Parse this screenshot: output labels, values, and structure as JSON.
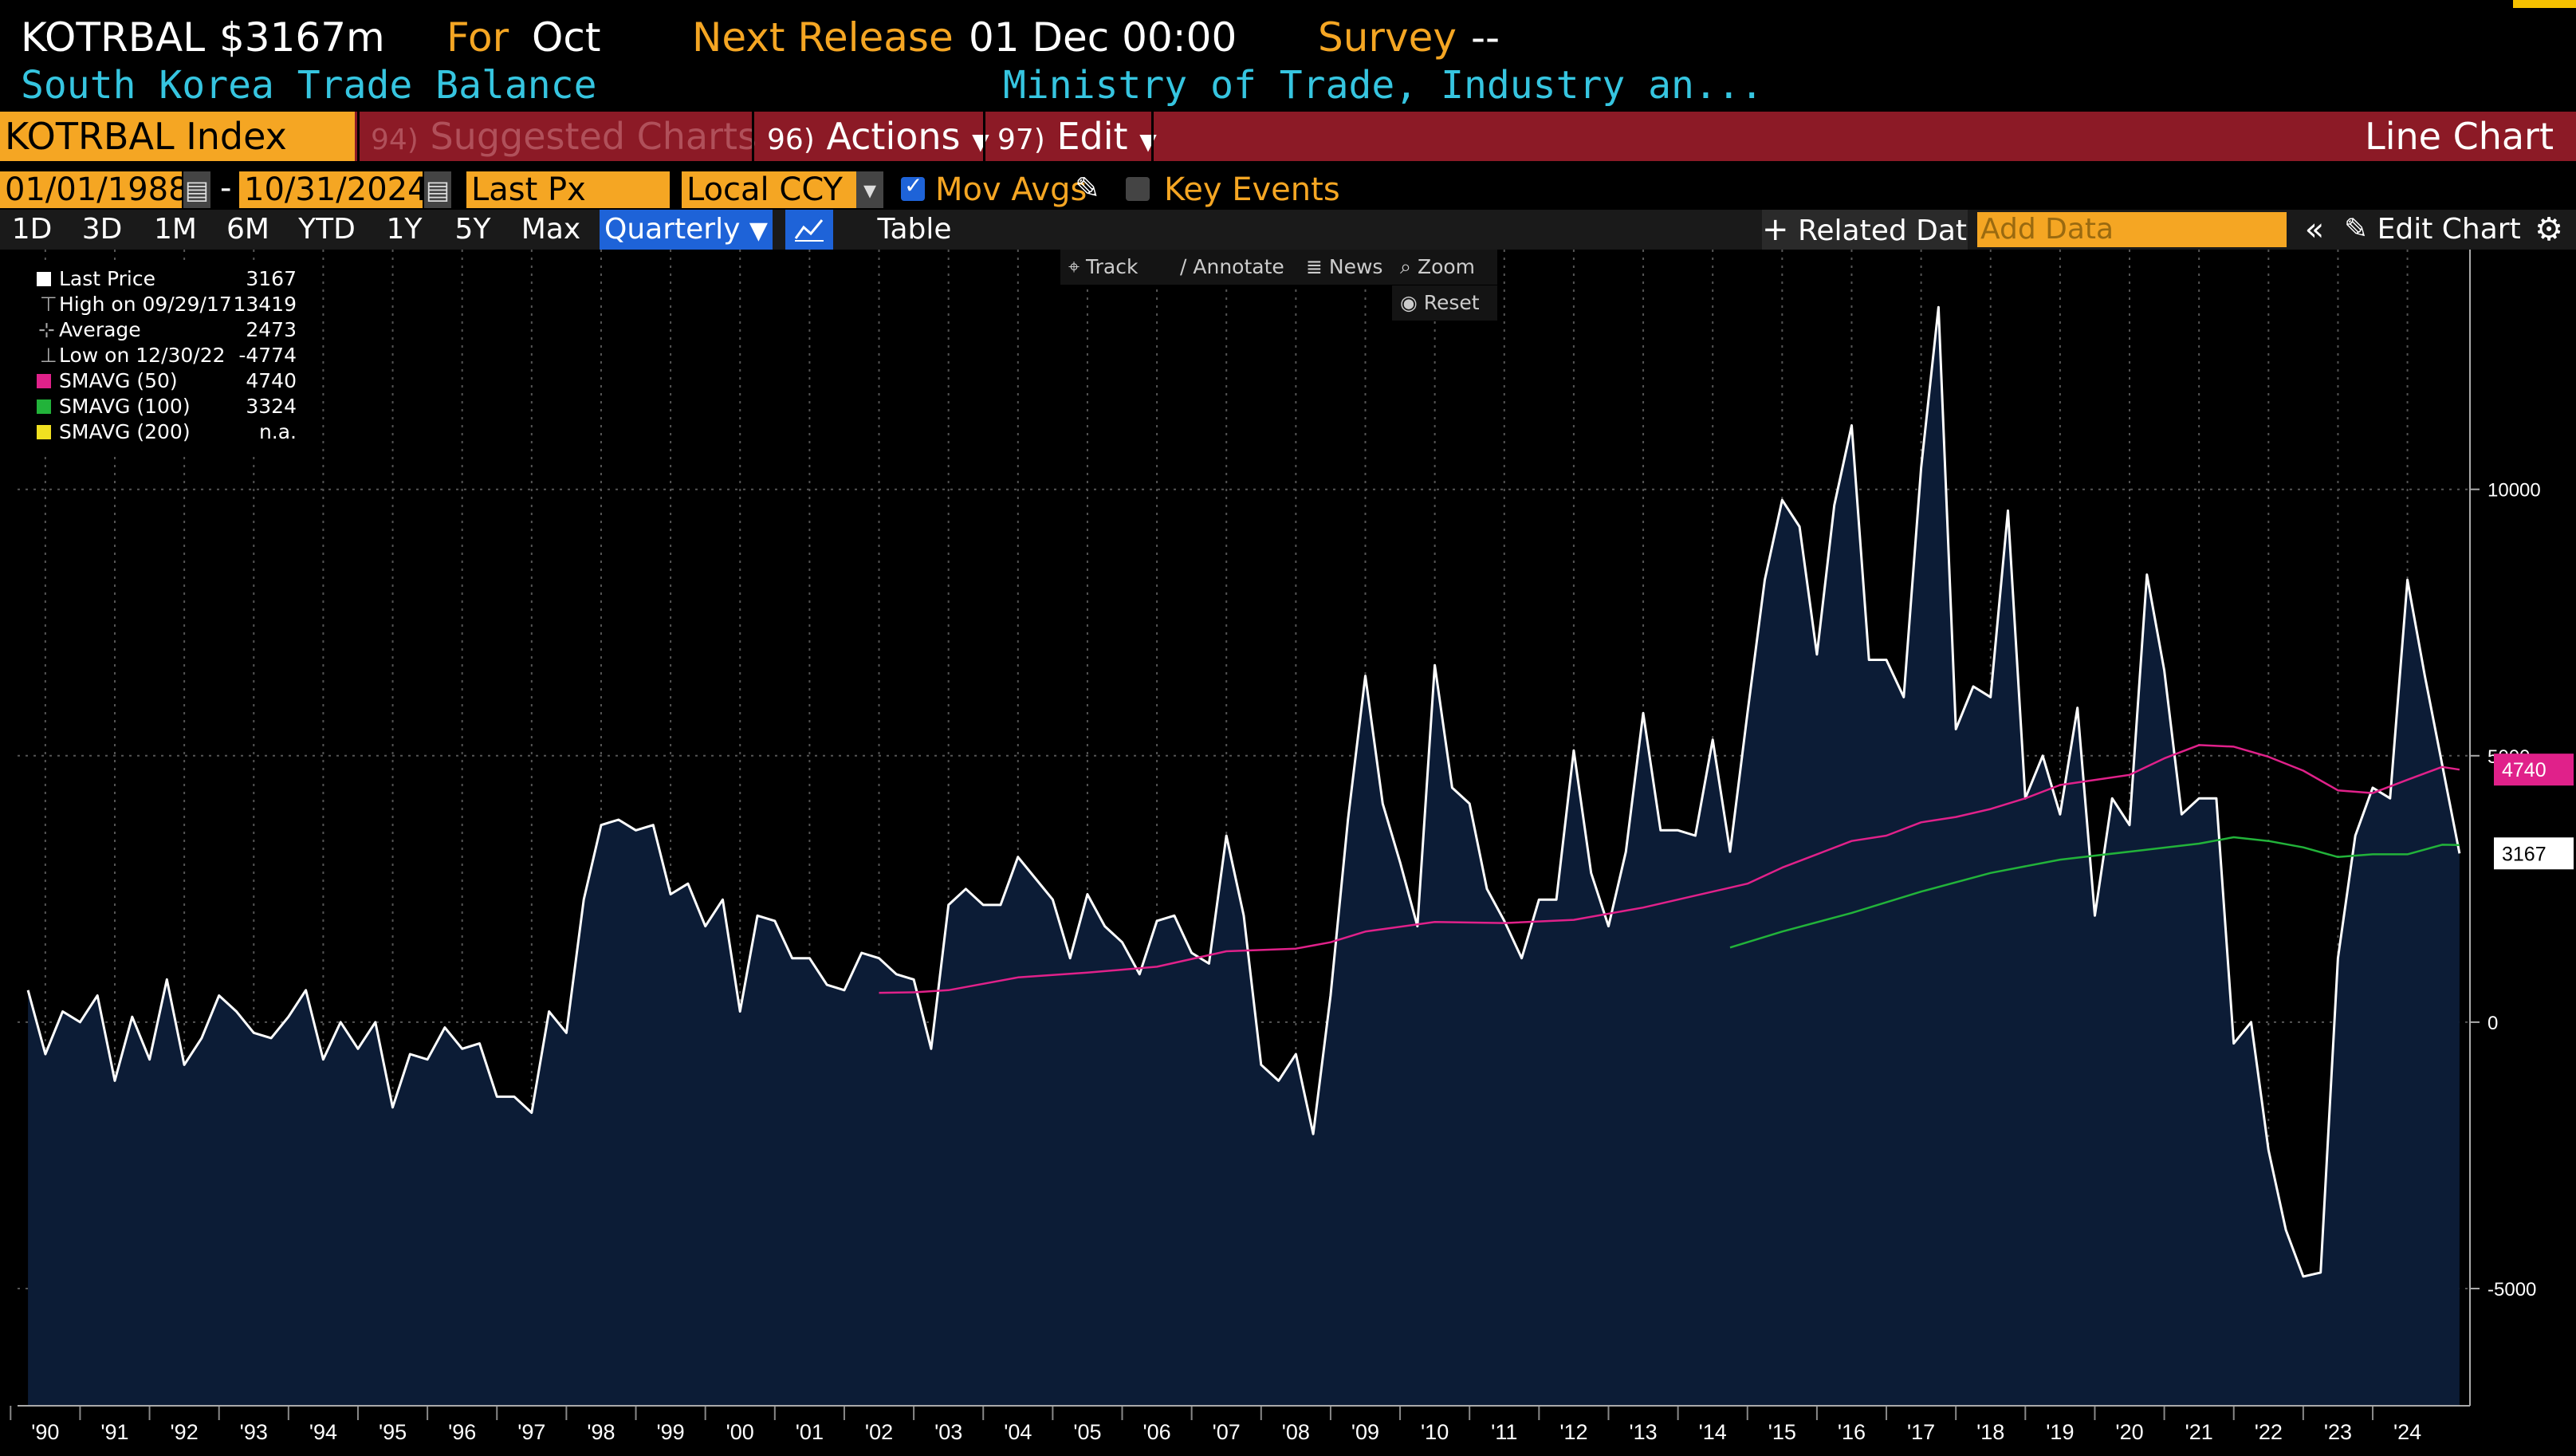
{
  "header": {
    "ticker": "KOTRBAL",
    "value": "$3167m",
    "for_label": "For",
    "for_value": "Oct",
    "next_release_label": "Next Release",
    "next_release_value": "01 Dec 00:00",
    "survey_label": "Survey",
    "survey_value": "--",
    "name": "South Korea Trade Balance",
    "source": "Ministry of Trade, Industry an..."
  },
  "funcbar": {
    "security": "KOTRBAL Index",
    "suggested_num": "94)",
    "suggested": "Suggested Charts",
    "actions_num": "96)",
    "actions": "Actions",
    "edit_num": "97)",
    "edit": "Edit",
    "chart_type": "Line Chart"
  },
  "controls": {
    "start_date": "01/01/1988",
    "end_date": "10/31/2024",
    "field": "Last Px",
    "currency": "Local CCY",
    "mov_avgs": "Mov Avgs",
    "key_events": "Key Events"
  },
  "range": {
    "buttons": [
      "1D",
      "3D",
      "1M",
      "6M",
      "YTD",
      "1Y",
      "5Y",
      "Max"
    ],
    "period": "Quarterly",
    "table": "Table",
    "related": "Related Dat",
    "add_data_placeholder": "Add Data",
    "edit_chart": "Edit Chart"
  },
  "tools": {
    "track": "Track",
    "annotate": "Annotate",
    "news": "News",
    "zoom": "Zoom",
    "reset": "Reset"
  },
  "legend": [
    {
      "label": "Last Price",
      "value": "3167",
      "color": "#ffffff"
    },
    {
      "label": "High on 09/29/17",
      "value": "13419",
      "color": ""
    },
    {
      "label": "Average",
      "value": "2473",
      "color": ""
    },
    {
      "label": "Low on 12/30/22",
      "value": "-4774",
      "color": ""
    },
    {
      "label": "SMAVG (50)",
      "value": "4740",
      "color": "#e0218a"
    },
    {
      "label": "SMAVG (100)",
      "value": "3324",
      "color": "#22b33a"
    },
    {
      "label": "SMAVG (200)",
      "value": "n.a.",
      "color": "#f0e020"
    }
  ],
  "chart_data": {
    "type": "area",
    "x_tick_labels": [
      "'90",
      "'91",
      "'92",
      "'93",
      "'94",
      "'95",
      "'96",
      "'97",
      "'98",
      "'99",
      "'00",
      "'01",
      "'02",
      "'03",
      "'04",
      "'05",
      "'06",
      "'07",
      "'08",
      "'09",
      "'10",
      "'11",
      "'12",
      "'13",
      "'14",
      "'15",
      "'16",
      "'17",
      "'18",
      "'19",
      "'20",
      "'21",
      "'22",
      "'23",
      "'24"
    ],
    "y_ticks": [
      -5000,
      0,
      5000,
      10000
    ],
    "ylim": [
      -7200,
      14500
    ],
    "xlim": [
      1989.6,
      2024.9
    ],
    "grid": true,
    "legend_position": "top-left",
    "series": [
      {
        "name": "Last Price",
        "color": "#ffffff",
        "fill": "#0c1c36",
        "points": [
          [
            1989.75,
            600
          ],
          [
            1990.0,
            -600
          ],
          [
            1990.25,
            200
          ],
          [
            1990.5,
            0
          ],
          [
            1990.75,
            500
          ],
          [
            1991.0,
            -1100
          ],
          [
            1991.25,
            100
          ],
          [
            1991.5,
            -700
          ],
          [
            1991.75,
            800
          ],
          [
            1992.0,
            -800
          ],
          [
            1992.25,
            -300
          ],
          [
            1992.5,
            500
          ],
          [
            1992.75,
            200
          ],
          [
            1993.0,
            -200
          ],
          [
            1993.25,
            -300
          ],
          [
            1993.5,
            100
          ],
          [
            1993.75,
            600
          ],
          [
            1994.0,
            -700
          ],
          [
            1994.25,
            0
          ],
          [
            1994.5,
            -500
          ],
          [
            1994.75,
            0
          ],
          [
            1995.0,
            -1600
          ],
          [
            1995.25,
            -600
          ],
          [
            1995.5,
            -700
          ],
          [
            1995.75,
            -100
          ],
          [
            1996.0,
            -500
          ],
          [
            1996.25,
            -400
          ],
          [
            1996.5,
            -1400
          ],
          [
            1996.75,
            -1400
          ],
          [
            1997.0,
            -1700
          ],
          [
            1997.25,
            200
          ],
          [
            1997.5,
            -200
          ],
          [
            1997.75,
            2300
          ],
          [
            1998.0,
            3700
          ],
          [
            1998.25,
            3800
          ],
          [
            1998.5,
            3600
          ],
          [
            1998.75,
            3700
          ],
          [
            1999.0,
            2400
          ],
          [
            1999.25,
            2600
          ],
          [
            1999.5,
            1800
          ],
          [
            1999.75,
            2300
          ],
          [
            2000.0,
            200
          ],
          [
            2000.25,
            2000
          ],
          [
            2000.5,
            1900
          ],
          [
            2000.75,
            1200
          ],
          [
            2001.0,
            1200
          ],
          [
            2001.25,
            700
          ],
          [
            2001.5,
            600
          ],
          [
            2001.75,
            1300
          ],
          [
            2002.0,
            1200
          ],
          [
            2002.25,
            900
          ],
          [
            2002.5,
            800
          ],
          [
            2002.75,
            -500
          ],
          [
            2003.0,
            2200
          ],
          [
            2003.25,
            2500
          ],
          [
            2003.5,
            2200
          ],
          [
            2003.75,
            2200
          ],
          [
            2004.0,
            3100
          ],
          [
            2004.25,
            2700
          ],
          [
            2004.5,
            2300
          ],
          [
            2004.75,
            1200
          ],
          [
            2005.0,
            2400
          ],
          [
            2005.25,
            1800
          ],
          [
            2005.5,
            1500
          ],
          [
            2005.75,
            900
          ],
          [
            2006.0,
            1900
          ],
          [
            2006.25,
            2000
          ],
          [
            2006.5,
            1300
          ],
          [
            2006.75,
            1100
          ],
          [
            2007.0,
            3500
          ],
          [
            2007.25,
            2000
          ],
          [
            2007.5,
            -800
          ],
          [
            2007.75,
            -1100
          ],
          [
            2008.0,
            -600
          ],
          [
            2008.25,
            -2100
          ],
          [
            2008.5,
            500
          ],
          [
            2008.75,
            3800
          ],
          [
            2009.0,
            6500
          ],
          [
            2009.25,
            4100
          ],
          [
            2009.5,
            3000
          ],
          [
            2009.75,
            1800
          ],
          [
            2010.0,
            6700
          ],
          [
            2010.25,
            4400
          ],
          [
            2010.5,
            4100
          ],
          [
            2010.75,
            2500
          ],
          [
            2011.0,
            1900
          ],
          [
            2011.25,
            1200
          ],
          [
            2011.5,
            2300
          ],
          [
            2011.75,
            2300
          ],
          [
            2012.0,
            5100
          ],
          [
            2012.25,
            2800
          ],
          [
            2012.5,
            1800
          ],
          [
            2012.75,
            3200
          ],
          [
            2013.0,
            5800
          ],
          [
            2013.25,
            3600
          ],
          [
            2013.5,
            3600
          ],
          [
            2013.75,
            3500
          ],
          [
            2014.0,
            5300
          ],
          [
            2014.25,
            3200
          ],
          [
            2014.5,
            5800
          ],
          [
            2014.75,
            8300
          ],
          [
            2015.0,
            9800
          ],
          [
            2015.25,
            9300
          ],
          [
            2015.5,
            6900
          ],
          [
            2015.75,
            9700
          ],
          [
            2016.0,
            11200
          ],
          [
            2016.25,
            6800
          ],
          [
            2016.5,
            6800
          ],
          [
            2016.75,
            6100
          ],
          [
            2017.0,
            10400
          ],
          [
            2017.25,
            13419
          ],
          [
            2017.5,
            5500
          ],
          [
            2017.75,
            6300
          ],
          [
            2018.0,
            6100
          ],
          [
            2018.25,
            9600
          ],
          [
            2018.5,
            4200
          ],
          [
            2018.75,
            5000
          ],
          [
            2019.0,
            3900
          ],
          [
            2019.25,
            5900
          ],
          [
            2019.5,
            2000
          ],
          [
            2019.75,
            4200
          ],
          [
            2020.0,
            3700
          ],
          [
            2020.25,
            8400
          ],
          [
            2020.5,
            6600
          ],
          [
            2020.75,
            3900
          ],
          [
            2021.0,
            4200
          ],
          [
            2021.25,
            4200
          ],
          [
            2021.5,
            -400
          ],
          [
            2021.75,
            0
          ],
          [
            2022.0,
            -2400
          ],
          [
            2022.25,
            -3900
          ],
          [
            2022.5,
            -4774
          ],
          [
            2022.75,
            -4700
          ],
          [
            2023.0,
            1200
          ],
          [
            2023.25,
            3500
          ],
          [
            2023.5,
            4400
          ],
          [
            2023.75,
            4200
          ],
          [
            2024.0,
            8300
          ],
          [
            2024.25,
            6500
          ],
          [
            2024.75,
            3167
          ]
        ]
      },
      {
        "name": "SMAVG (50)",
        "color": "#e0218a",
        "points": [
          [
            2002.0,
            550
          ],
          [
            2002.5,
            560
          ],
          [
            2003.0,
            600
          ],
          [
            2004.0,
            840
          ],
          [
            2005.0,
            930
          ],
          [
            2006.0,
            1040
          ],
          [
            2007.0,
            1330
          ],
          [
            2008.0,
            1380
          ],
          [
            2008.5,
            1500
          ],
          [
            2009.0,
            1700
          ],
          [
            2010.0,
            1880
          ],
          [
            2011.0,
            1860
          ],
          [
            2012.0,
            1920
          ],
          [
            2013.0,
            2150
          ],
          [
            2014.0,
            2450
          ],
          [
            2014.5,
            2600
          ],
          [
            2015.0,
            2900
          ],
          [
            2015.5,
            3150
          ],
          [
            2016.0,
            3400
          ],
          [
            2016.5,
            3500
          ],
          [
            2017.0,
            3750
          ],
          [
            2017.5,
            3850
          ],
          [
            2018.0,
            4000
          ],
          [
            2018.5,
            4200
          ],
          [
            2019.0,
            4450
          ],
          [
            2020.0,
            4640
          ],
          [
            2020.5,
            4950
          ],
          [
            2021.0,
            5200
          ],
          [
            2021.5,
            5170
          ],
          [
            2022.0,
            4980
          ],
          [
            2022.5,
            4720
          ],
          [
            2023.0,
            4350
          ],
          [
            2023.5,
            4300
          ],
          [
            2024.0,
            4550
          ],
          [
            2024.5,
            4790
          ],
          [
            2024.75,
            4740
          ]
        ]
      },
      {
        "name": "SMAVG (100)",
        "color": "#22b33a",
        "points": [
          [
            2014.25,
            1400
          ],
          [
            2015.0,
            1700
          ],
          [
            2016.0,
            2050
          ],
          [
            2017.0,
            2450
          ],
          [
            2018.0,
            2800
          ],
          [
            2019.0,
            3050
          ],
          [
            2020.0,
            3200
          ],
          [
            2021.0,
            3350
          ],
          [
            2021.5,
            3470
          ],
          [
            2022.0,
            3400
          ],
          [
            2022.5,
            3280
          ],
          [
            2023.0,
            3100
          ],
          [
            2023.5,
            3150
          ],
          [
            2024.0,
            3150
          ],
          [
            2024.5,
            3330
          ],
          [
            2024.75,
            3324
          ]
        ]
      }
    ],
    "last_value_labels": [
      {
        "text": "4740",
        "value": 4740,
        "color": "#e0218a"
      },
      {
        "text": "3167",
        "value": 3167,
        "color": "#ffffff"
      }
    ]
  }
}
